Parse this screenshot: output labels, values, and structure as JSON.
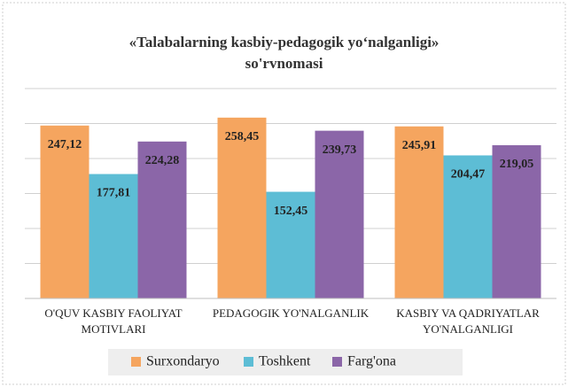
{
  "chart_data": {
    "type": "bar",
    "title": "«Talabalarning kasbiy-pedagogik yo‘nalganligi» so'rvnomasi",
    "categories": [
      "O'QUV KASBIY FAOLIYAT MOTIVLARI",
      "PEDAGOGIK YO'NALGANLIK",
      "KASBIY VA QADRIYATLAR YO'NALGANLIGI"
    ],
    "series": [
      {
        "name": "Surxondaryo",
        "color": "#f5a55f",
        "values": [
          247.12,
          258.45,
          245.91
        ],
        "value_labels": [
          "247,12",
          "258,45",
          "245,91"
        ]
      },
      {
        "name": "Toshkent",
        "color": "#5dbdd5",
        "values": [
          177.81,
          152.45,
          204.47
        ],
        "value_labels": [
          "177,81",
          "152,45",
          "204,47"
        ]
      },
      {
        "name": "Farg'ona",
        "color": "#8b66a8",
        "values": [
          224.28,
          239.73,
          219.05
        ],
        "value_labels": [
          "224,28",
          "239,73",
          "219,05"
        ]
      }
    ],
    "ylim": [
      0,
      300
    ],
    "yticks": [
      0,
      50,
      100,
      150,
      200,
      250,
      300
    ],
    "grid": true,
    "legend": "bottom"
  }
}
